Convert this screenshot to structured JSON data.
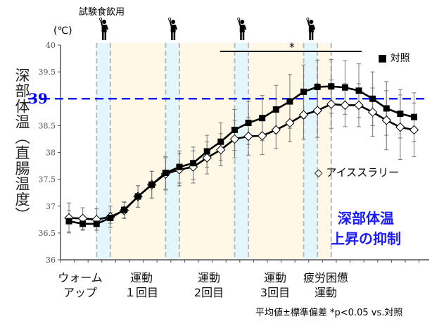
{
  "chart_data": {
    "type": "line",
    "ylabel": "深部体温（直腸温度）",
    "yunit": "(℃)",
    "ylim": [
      36,
      40
    ],
    "yticks": [
      "36",
      "36.5",
      "37",
      "37.5",
      "38",
      "38.5",
      "39",
      "39.5",
      "40"
    ],
    "reference_line": {
      "value": 39,
      "label": "39",
      "color": "#0000ff"
    },
    "drink_label": "試験食飲用",
    "phases": [
      "ウォーム\nアップ",
      "運動\n１回目",
      "運動\n2回目",
      "運動\n3回目",
      "疲労困憊\n運動"
    ],
    "significance": {
      "label": "*",
      "from_index": 11,
      "to_index": 21
    },
    "series": [
      {
        "name": "対照",
        "marker": "square",
        "color": "#000000",
        "values": [
          36.72,
          36.67,
          36.67,
          36.78,
          36.93,
          37.18,
          37.4,
          37.62,
          37.73,
          37.8,
          38.02,
          38.2,
          38.42,
          38.55,
          38.64,
          38.8,
          38.95,
          39.13,
          39.22,
          39.23,
          39.21,
          39.15,
          39.0,
          38.82,
          38.72,
          38.66
        ],
        "sd": [
          0.2,
          0.12,
          0.12,
          0.1,
          0.15,
          0.2,
          0.25,
          0.3,
          0.3,
          0.3,
          0.3,
          0.35,
          0.38,
          0.4,
          0.42,
          0.45,
          0.5,
          0.5,
          0.5,
          0.5,
          0.5,
          0.5,
          0.5,
          0.5,
          0.45,
          0.45
        ]
      },
      {
        "name": "アイススラリー",
        "marker": "diamond",
        "color": "#000000",
        "values": [
          36.78,
          36.77,
          36.75,
          36.8,
          36.92,
          37.18,
          37.4,
          37.6,
          37.68,
          37.73,
          37.9,
          38.05,
          38.25,
          38.3,
          38.31,
          38.42,
          38.55,
          38.7,
          38.78,
          38.9,
          38.88,
          38.88,
          38.75,
          38.6,
          38.47,
          38.42
        ],
        "sd": [
          0.28,
          0.2,
          0.2,
          0.2,
          0.15,
          0.2,
          0.25,
          0.3,
          0.3,
          0.3,
          0.3,
          0.3,
          0.35,
          0.35,
          0.35,
          0.35,
          0.35,
          0.45,
          0.5,
          0.45,
          0.4,
          0.4,
          0.45,
          0.55,
          0.6,
          0.5
        ]
      }
    ],
    "grid": false,
    "legend": "right"
  },
  "annotation": "深部体温\n上昇の抑制",
  "footnote": "平均値±標準偏差 *p<0.05 vs.対照",
  "colors": {
    "drink_band": "#e3f6fb",
    "exercise_band": "#fff8e6",
    "accent": "#1a1aff"
  }
}
